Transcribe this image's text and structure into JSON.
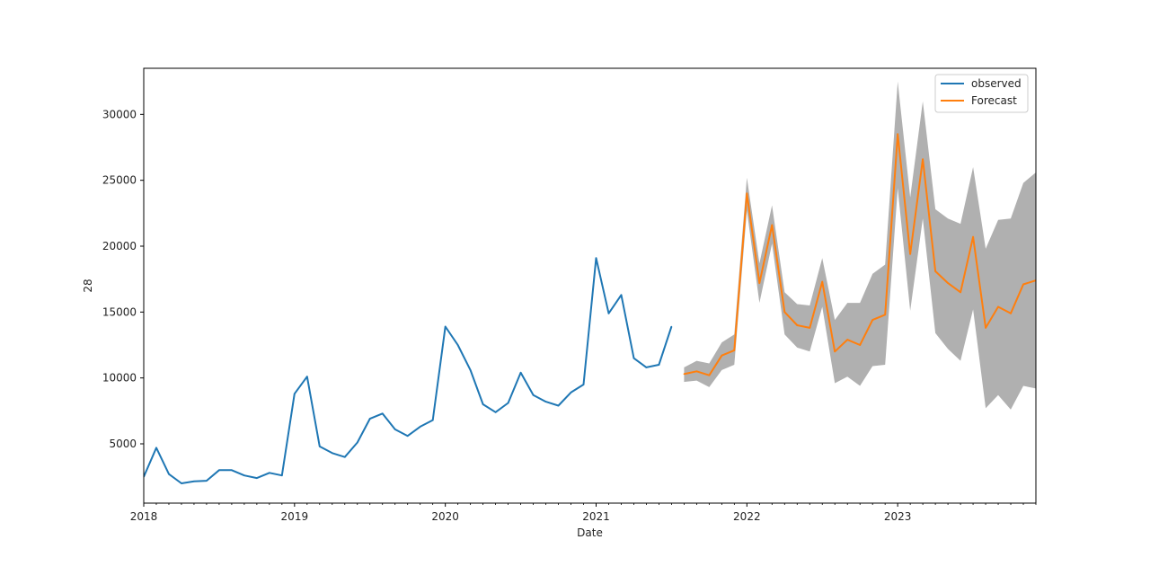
{
  "chart_data": {
    "type": "line",
    "title": "",
    "xlabel": "Date",
    "ylabel": "28",
    "x_axis": {
      "kind": "date",
      "range": [
        "2018-01",
        "2023-12"
      ],
      "tick_labels": [
        "2018",
        "2019",
        "2020",
        "2021",
        "2022",
        "2023"
      ]
    },
    "y_axis": {
      "range": [
        500,
        33500
      ],
      "ticks": [
        5000,
        10000,
        15000,
        20000,
        25000,
        30000
      ]
    },
    "grid": false,
    "legend": {
      "placement": "top-right",
      "entries": [
        "observed",
        "Forecast"
      ]
    },
    "series": [
      {
        "name": "observed",
        "color": "#1f77b4",
        "x": [
          "2018-01",
          "2018-02",
          "2018-03",
          "2018-04",
          "2018-05",
          "2018-06",
          "2018-07",
          "2018-08",
          "2018-09",
          "2018-10",
          "2018-11",
          "2018-12",
          "2019-01",
          "2019-02",
          "2019-03",
          "2019-04",
          "2019-05",
          "2019-06",
          "2019-07",
          "2019-08",
          "2019-09",
          "2019-10",
          "2019-11",
          "2019-12",
          "2020-01",
          "2020-02",
          "2020-03",
          "2020-04",
          "2020-05",
          "2020-06",
          "2020-07",
          "2020-08",
          "2020-09",
          "2020-10",
          "2020-11",
          "2020-12",
          "2021-01",
          "2021-02",
          "2021-03",
          "2021-04",
          "2021-05",
          "2021-06",
          "2021-07"
        ],
        "values": [
          2500,
          4700,
          2700,
          2000,
          2150,
          2200,
          3000,
          3000,
          2600,
          2400,
          2800,
          2600,
          8800,
          10100,
          4800,
          4300,
          4000,
          5100,
          6900,
          7300,
          6100,
          5600,
          6300,
          6800,
          13900,
          12500,
          10600,
          8000,
          7400,
          8100,
          10400,
          8700,
          8200,
          7900,
          8900,
          9500,
          19100,
          14900,
          16300,
          11500,
          10800,
          11000,
          13900
        ]
      },
      {
        "name": "Forecast",
        "color": "#ff7f0e",
        "band_color": "#b0b0b0",
        "x": [
          "2021-08",
          "2021-09",
          "2021-10",
          "2021-11",
          "2021-12",
          "2022-01",
          "2022-02",
          "2022-03",
          "2022-04",
          "2022-05",
          "2022-06",
          "2022-07",
          "2022-08",
          "2022-09",
          "2022-10",
          "2022-11",
          "2022-12",
          "2023-01",
          "2023-02",
          "2023-03",
          "2023-04",
          "2023-05",
          "2023-06",
          "2023-07",
          "2023-08",
          "2023-09",
          "2023-10",
          "2023-11",
          "2023-12"
        ],
        "values": [
          10300,
          10500,
          10200,
          11700,
          12100,
          24000,
          17200,
          21600,
          15000,
          14000,
          13800,
          17300,
          12000,
          12900,
          12500,
          14400,
          14800,
          28500,
          19400,
          26600,
          18100,
          17200,
          16500,
          20700,
          13800,
          15400,
          14900,
          17100,
          17400
        ],
        "lower": [
          9700,
          9800,
          9300,
          10600,
          11000,
          22700,
          15700,
          20200,
          13300,
          12300,
          12000,
          15400,
          9600,
          10100,
          9400,
          10900,
          11000,
          24400,
          15100,
          22100,
          13400,
          12200,
          11300,
          15200,
          7700,
          8700,
          7600,
          9400,
          9200
        ],
        "upper": [
          10800,
          11300,
          11100,
          12700,
          13300,
          25200,
          18700,
          23100,
          16500,
          15600,
          15500,
          19100,
          14400,
          15700,
          15700,
          17900,
          18600,
          32500,
          23700,
          31000,
          22800,
          22100,
          21700,
          26000,
          19800,
          22000,
          22100,
          24800,
          25600
        ]
      }
    ]
  }
}
